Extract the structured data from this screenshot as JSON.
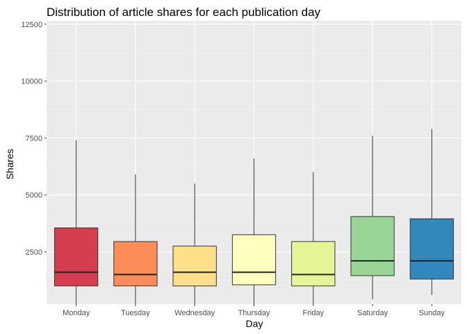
{
  "chart_data": {
    "type": "boxplot",
    "title": "Distribution of article shares for each publication day",
    "xlabel": "Day",
    "ylabel": "Shares",
    "categories": [
      "Monday",
      "Tuesday",
      "Wednesday",
      "Thursday",
      "Friday",
      "Saturday",
      "Sunday"
    ],
    "boxes": [
      {
        "whisker_low": 0,
        "q1": 1000,
        "median": 1600,
        "q3": 3550,
        "whisker_high": 7400,
        "color": "#D53E4F"
      },
      {
        "whisker_low": 0,
        "q1": 1000,
        "median": 1500,
        "q3": 2950,
        "whisker_high": 5900,
        "color": "#FC8D59"
      },
      {
        "whisker_low": 0,
        "q1": 1000,
        "median": 1600,
        "q3": 2750,
        "whisker_high": 5500,
        "color": "#FEE08B"
      },
      {
        "whisker_low": 0,
        "q1": 1050,
        "median": 1600,
        "q3": 3250,
        "whisker_high": 6600,
        "color": "#FFFFBF"
      },
      {
        "whisker_low": 0,
        "q1": 1000,
        "median": 1500,
        "q3": 2950,
        "whisker_high": 6000,
        "color": "#E6F598"
      },
      {
        "whisker_low": 400,
        "q1": 1450,
        "median": 2100,
        "q3": 4050,
        "whisker_high": 7600,
        "color": "#99D594"
      },
      {
        "whisker_low": 600,
        "q1": 1300,
        "median": 2100,
        "q3": 3950,
        "whisker_high": 7900,
        "color": "#3288BD"
      }
    ],
    "y_ticks": [
      2500,
      5000,
      7500,
      10000,
      12500
    ],
    "ylim": [
      0,
      12500
    ],
    "grid": true,
    "legend": "none",
    "colors": {
      "panel_background": "#EBEBEB",
      "grid_major": "#FFFFFF",
      "grid_minor": "#F5F5F5"
    }
  }
}
